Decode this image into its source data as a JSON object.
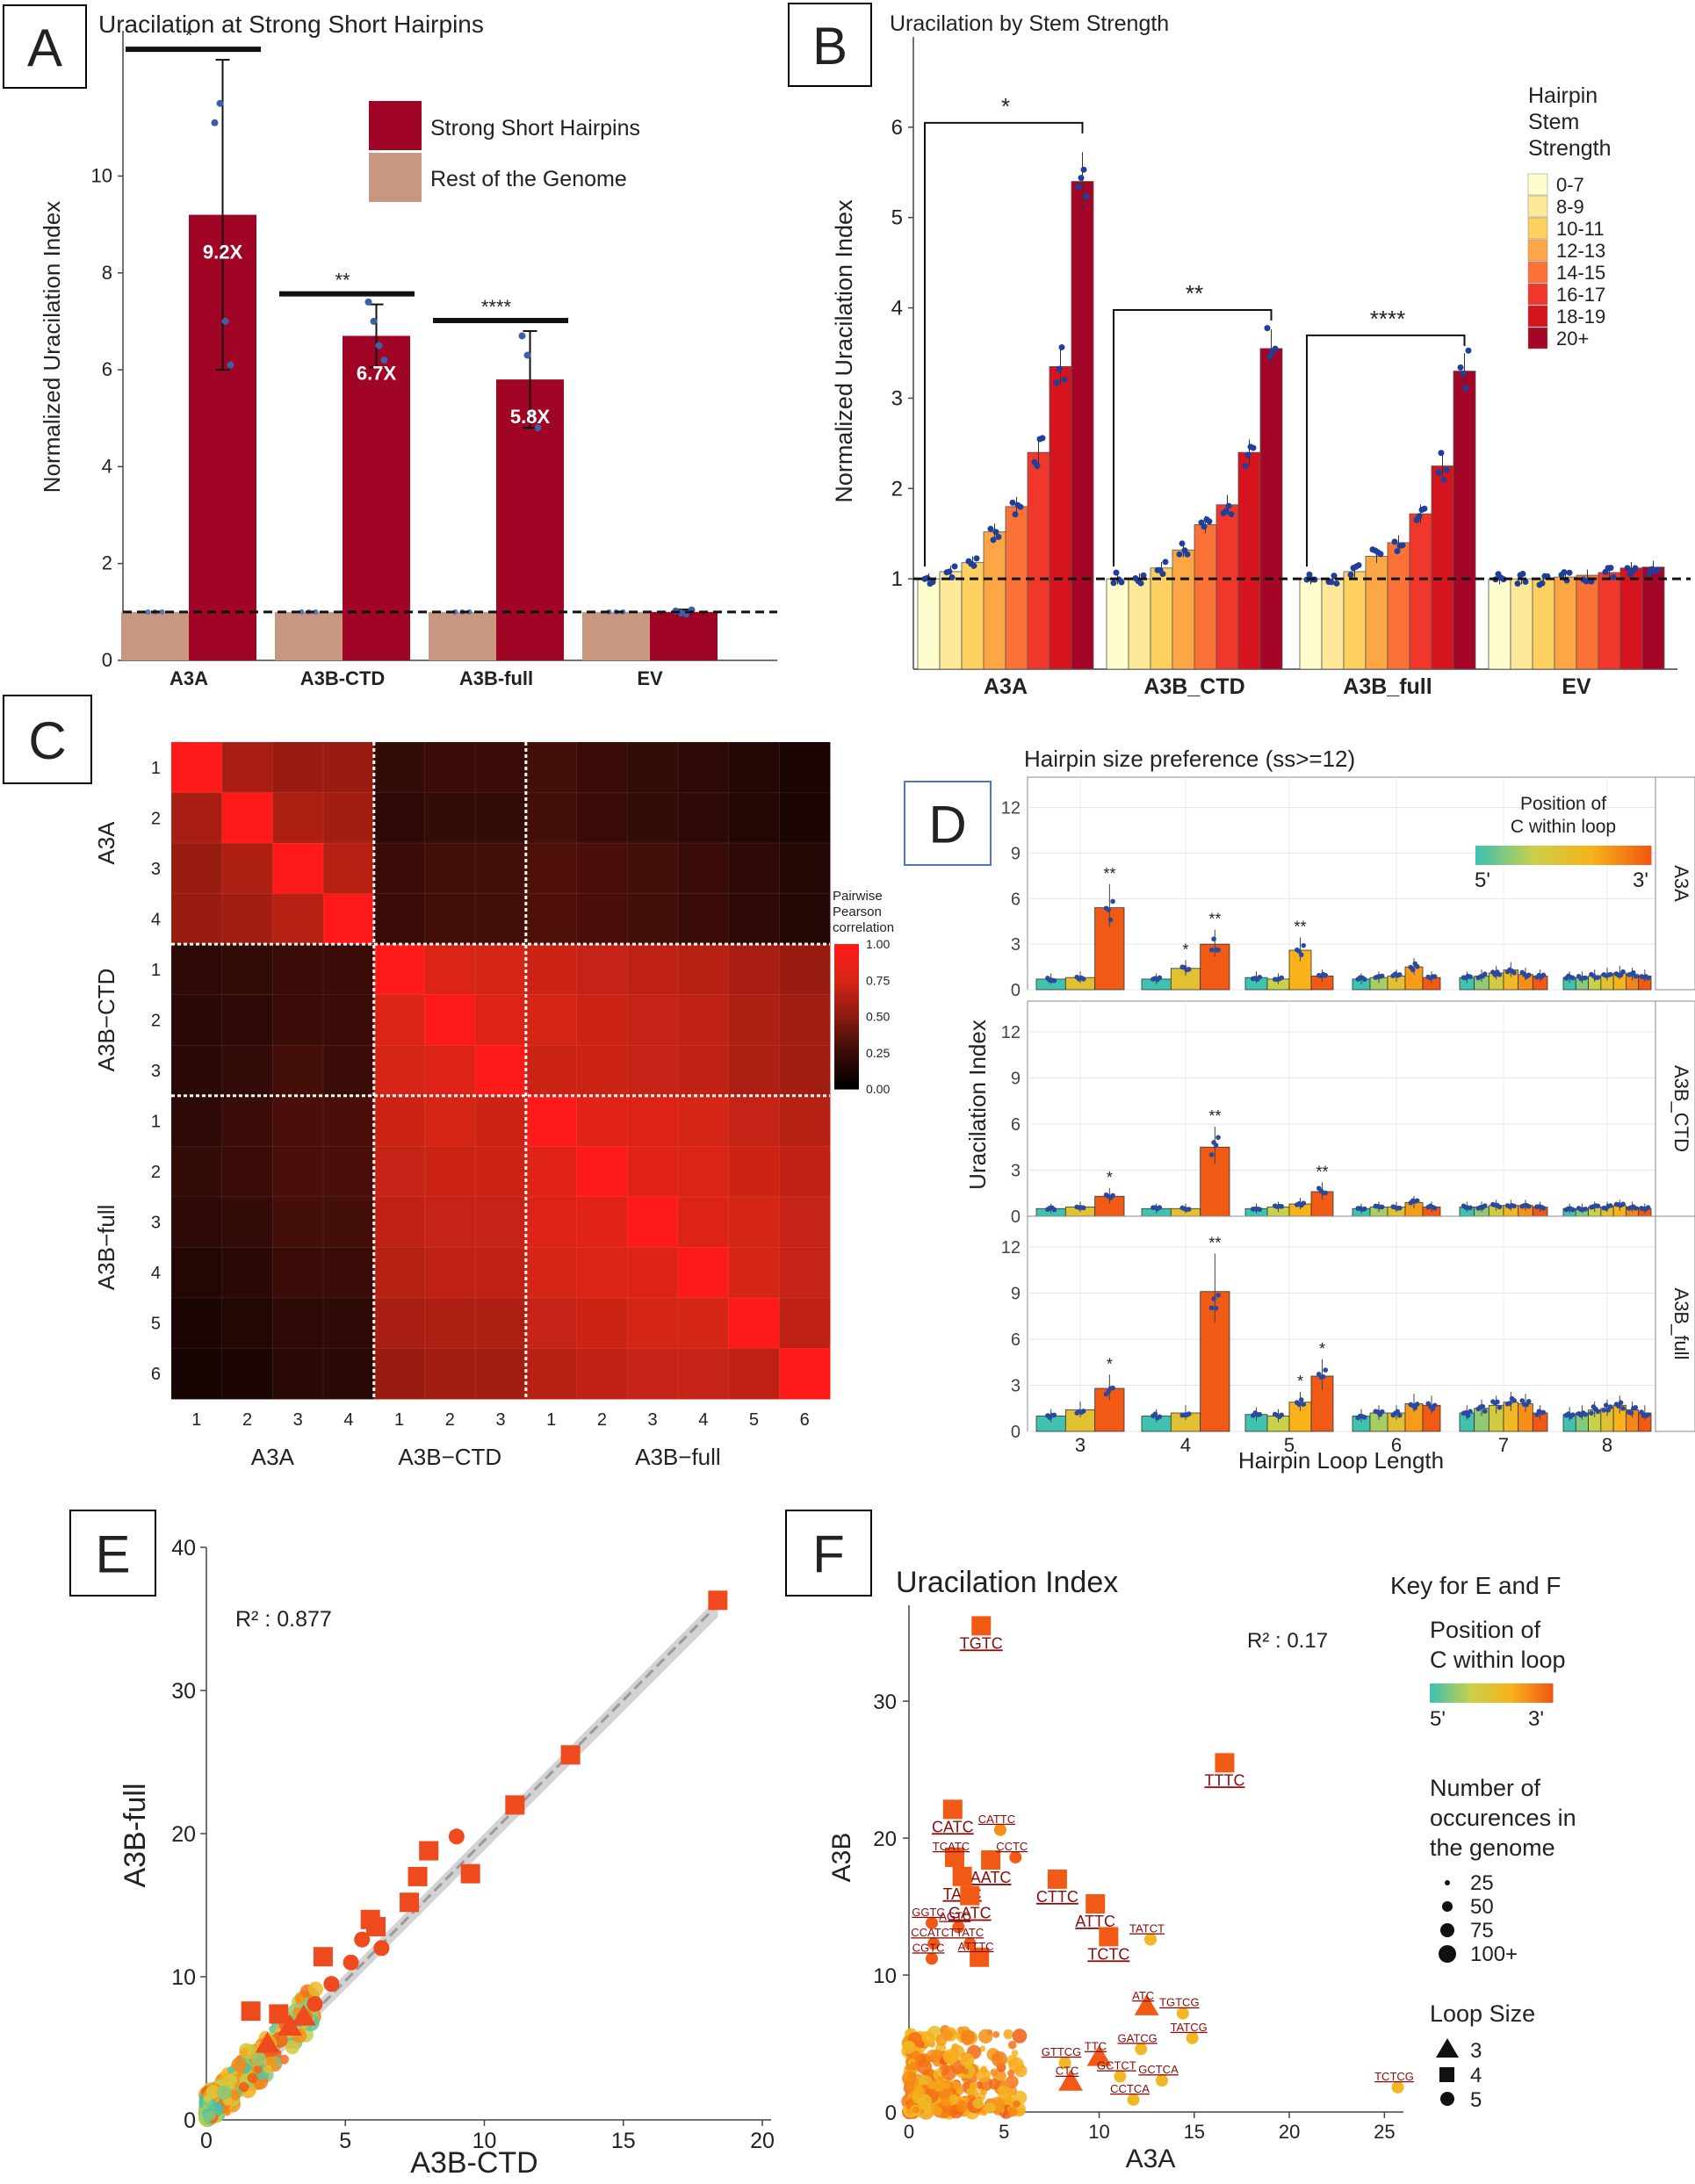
{
  "chart_data": [
    {
      "panel": "A",
      "type": "bar",
      "letter": "A",
      "title": "Uracilation at Strong Short Hairpins",
      "ylabel": "Normalized Uracilation Index",
      "ylim": [
        0,
        13
      ],
      "yticks": [
        "0",
        "2",
        "4",
        "6",
        "8",
        "10"
      ],
      "categories": [
        "A3A",
        "A3B-CTD",
        "A3B-full",
        "EV"
      ],
      "series": [
        {
          "name": "Rest of the Genome",
          "color": "#c8977f",
          "values": [
            1.0,
            1.0,
            1.0,
            1.0
          ],
          "err": [
            0.02,
            0.02,
            0.02,
            0.02
          ]
        },
        {
          "name": "Strong Short Hairpins",
          "color": "#a10525",
          "values": [
            9.2,
            6.7,
            5.8,
            1.0
          ],
          "err": [
            3.2,
            0.65,
            1.0,
            0.05
          ]
        }
      ],
      "points": [
        [
          11.1,
          11.5,
          7.0,
          6.1
        ],
        [
          7.4,
          7.0,
          6.5,
          6.2
        ],
        [
          6.7,
          6.3,
          5.1,
          4.8
        ],
        [
          1.02,
          0.98,
          0.96,
          1.04
        ]
      ],
      "fold_labels": [
        "9.2X",
        "6.7X",
        "5.8X",
        ""
      ],
      "significance": [
        "*",
        "**",
        "****",
        ""
      ],
      "legend": [
        "Strong Short Hairpins",
        "Rest of the Genome"
      ]
    },
    {
      "panel": "B",
      "type": "bar",
      "letter": "B",
      "title": "Uracilation by Stem Strength",
      "ylabel": "Normalized Uracilation Index",
      "ylim": [
        0,
        7.0
      ],
      "yticks": [
        "1",
        "2",
        "3",
        "4",
        "5",
        "6"
      ],
      "categories": [
        "A3A",
        "A3B_CTD",
        "A3B_full",
        "EV"
      ],
      "legend_title": [
        "Hairpin",
        "Stem",
        "Strength"
      ],
      "legend": [
        "0-7",
        "8-9",
        "10-11",
        "12-13",
        "14-15",
        "16-17",
        "18-19",
        "20+"
      ],
      "colors": [
        "#fffccd",
        "#fee99a",
        "#fed05f",
        "#fda646",
        "#fb7236",
        "#f0372b",
        "#d5141e",
        "#a50526"
      ],
      "groups": [
        {
          "values": [
            1.0,
            1.08,
            1.18,
            1.52,
            1.8,
            2.4,
            3.35,
            5.4
          ]
        },
        {
          "values": [
            1.0,
            1.0,
            1.12,
            1.32,
            1.6,
            1.82,
            2.4,
            3.55
          ]
        },
        {
          "values": [
            1.0,
            1.0,
            1.08,
            1.25,
            1.4,
            1.72,
            2.25,
            3.3
          ]
        },
        {
          "values": [
            1.0,
            1.0,
            1.0,
            1.02,
            1.04,
            1.07,
            1.12,
            1.13
          ]
        }
      ],
      "significance": [
        "*",
        "**",
        "****",
        ""
      ]
    },
    {
      "panel": "C",
      "type": "heatmap",
      "letter": "C",
      "legend_title": [
        "Pairwise",
        "Pearson",
        "correlation"
      ],
      "legend_ticks": [
        "1.00",
        "0.75",
        "0.50",
        "0.25",
        "0.00"
      ],
      "groups": [
        "A3A",
        "A3B−CTD",
        "A3B−full"
      ],
      "row_labels": [
        "1",
        "2",
        "3",
        "4",
        "1",
        "2",
        "3",
        "1",
        "2",
        "3",
        "4",
        "5",
        "6"
      ],
      "col_labels": [
        "1",
        "2",
        "3",
        "4",
        "1",
        "2",
        "3",
        "1",
        "2",
        "3",
        "4",
        "5",
        "6"
      ],
      "matrix": [
        [
          1.0,
          0.6,
          0.55,
          0.55,
          0.22,
          0.25,
          0.25,
          0.28,
          0.25,
          0.22,
          0.2,
          0.15,
          0.12
        ],
        [
          0.6,
          1.0,
          0.62,
          0.58,
          0.2,
          0.22,
          0.22,
          0.28,
          0.25,
          0.22,
          0.2,
          0.15,
          0.12
        ],
        [
          0.55,
          0.62,
          1.0,
          0.65,
          0.25,
          0.28,
          0.28,
          0.32,
          0.3,
          0.28,
          0.25,
          0.2,
          0.16
        ],
        [
          0.55,
          0.58,
          0.65,
          1.0,
          0.25,
          0.28,
          0.28,
          0.32,
          0.3,
          0.28,
          0.25,
          0.2,
          0.16
        ],
        [
          0.2,
          0.22,
          0.25,
          0.25,
          1.0,
          0.78,
          0.75,
          0.72,
          0.7,
          0.68,
          0.65,
          0.6,
          0.55
        ],
        [
          0.18,
          0.2,
          0.25,
          0.25,
          0.78,
          1.0,
          0.8,
          0.75,
          0.72,
          0.7,
          0.68,
          0.62,
          0.58
        ],
        [
          0.18,
          0.22,
          0.28,
          0.25,
          0.75,
          0.8,
          1.0,
          0.72,
          0.72,
          0.7,
          0.68,
          0.62,
          0.58
        ],
        [
          0.2,
          0.25,
          0.3,
          0.3,
          0.72,
          0.75,
          0.72,
          1.0,
          0.82,
          0.8,
          0.75,
          0.7,
          0.65
        ],
        [
          0.22,
          0.25,
          0.3,
          0.3,
          0.7,
          0.72,
          0.72,
          0.82,
          1.0,
          0.82,
          0.78,
          0.72,
          0.68
        ],
        [
          0.2,
          0.22,
          0.28,
          0.28,
          0.68,
          0.7,
          0.7,
          0.8,
          0.82,
          1.0,
          0.8,
          0.75,
          0.7
        ],
        [
          0.15,
          0.18,
          0.25,
          0.25,
          0.65,
          0.68,
          0.68,
          0.75,
          0.78,
          0.8,
          1.0,
          0.75,
          0.7
        ],
        [
          0.12,
          0.15,
          0.2,
          0.2,
          0.6,
          0.62,
          0.62,
          0.7,
          0.72,
          0.75,
          0.75,
          1.0,
          0.68
        ],
        [
          0.1,
          0.12,
          0.18,
          0.18,
          0.55,
          0.58,
          0.58,
          0.65,
          0.68,
          0.7,
          0.7,
          0.68,
          1.0
        ]
      ]
    },
    {
      "panel": "D",
      "type": "bar",
      "letter": "D",
      "title": "Hairpin size preference (ss>=12)",
      "xlabel": "Hairpin Loop Length",
      "ylabel": "Uracilation Index",
      "ylim": [
        0,
        14
      ],
      "yticks": [
        "0",
        "3",
        "6",
        "9",
        "12"
      ],
      "categories": [
        "3",
        "4",
        "5",
        "6",
        "7",
        "8"
      ],
      "legend_title": [
        "Position of",
        "C within loop"
      ],
      "legend_ends": [
        "5'",
        "3'"
      ],
      "facets": [
        {
          "name": "A3A",
          "values": [
            [
              0.7,
              0.8,
              5.4
            ],
            [
              0.7,
              1.4,
              3.0
            ],
            [
              0.8,
              0.7,
              2.6,
              0.9
            ],
            [
              0.7,
              0.8,
              0.9,
              1.5,
              0.8
            ],
            [
              0.8,
              0.9,
              1.1,
              1.3,
              1.0,
              0.9
            ],
            [
              0.8,
              0.8,
              0.9,
              1.0,
              1.1,
              1.0,
              0.9
            ]
          ],
          "stars": [
            [
              2,
              "**"
            ],
            [
              4,
              "*"
            ],
            [
              5,
              "**"
            ],
            [
              8,
              "**"
            ]
          ]
        },
        {
          "name": "A3B_CTD",
          "values": [
            [
              0.5,
              0.6,
              1.3
            ],
            [
              0.5,
              0.5,
              4.5
            ],
            [
              0.5,
              0.6,
              0.8,
              1.6
            ],
            [
              0.5,
              0.6,
              0.6,
              0.9,
              0.6
            ],
            [
              0.6,
              0.6,
              0.7,
              0.7,
              0.7,
              0.6
            ],
            [
              0.5,
              0.5,
              0.6,
              0.6,
              0.7,
              0.6,
              0.5
            ]
          ],
          "stars": [
            [
              2,
              "*"
            ],
            [
              5,
              "**"
            ],
            [
              9,
              "**"
            ]
          ]
        },
        {
          "name": "A3B_full",
          "values": [
            [
              1.0,
              1.4,
              2.8
            ],
            [
              1.0,
              1.2,
              9.1
            ],
            [
              1.1,
              1.0,
              1.9,
              3.6
            ],
            [
              1.0,
              1.2,
              1.2,
              1.8,
              1.7
            ],
            [
              1.2,
              1.5,
              1.7,
              1.9,
              1.8,
              1.2
            ],
            [
              1.1,
              1.2,
              1.4,
              1.5,
              1.7,
              1.4,
              1.2
            ]
          ],
          "stars": [
            [
              2,
              "*"
            ],
            [
              5,
              "**"
            ],
            [
              8,
              "*"
            ],
            [
              9,
              "*"
            ]
          ]
        }
      ]
    },
    {
      "panel": "E",
      "type": "scatter",
      "letter": "E",
      "xlabel": "A3B-CTD",
      "ylabel": "A3B-full",
      "xlim": [
        0,
        20
      ],
      "ylim": [
        0,
        40
      ],
      "xticks": [
        "0",
        "5",
        "10",
        "15",
        "20"
      ],
      "yticks": [
        "0",
        "10",
        "20",
        "30",
        "40"
      ],
      "r2_label": "R² : 0.877",
      "highlight": [
        {
          "x": 18.4,
          "y": 36.3,
          "s": "square"
        },
        {
          "x": 13.1,
          "y": 25.5,
          "s": "square"
        },
        {
          "x": 11.1,
          "y": 22.0,
          "s": "square"
        },
        {
          "x": 9.5,
          "y": 17.2,
          "s": "square"
        },
        {
          "x": 8.0,
          "y": 18.8,
          "s": "square"
        },
        {
          "x": 7.6,
          "y": 17.0,
          "s": "square"
        },
        {
          "x": 7.3,
          "y": 15.2,
          "s": "square"
        },
        {
          "x": 6.1,
          "y": 13.5,
          "s": "square"
        },
        {
          "x": 5.9,
          "y": 14.0,
          "s": "square"
        },
        {
          "x": 4.2,
          "y": 11.4,
          "s": "square"
        },
        {
          "x": 2.6,
          "y": 7.4,
          "s": "square"
        },
        {
          "x": 1.6,
          "y": 7.6,
          "s": "square"
        },
        {
          "x": 3.5,
          "y": 7.2,
          "s": "triangle"
        },
        {
          "x": 3.0,
          "y": 6.5,
          "s": "triangle"
        },
        {
          "x": 2.2,
          "y": 5.3,
          "s": "triangle"
        },
        {
          "x": 9.0,
          "y": 19.8,
          "s": "circle"
        },
        {
          "x": 6.3,
          "y": 12.0,
          "s": "circle"
        },
        {
          "x": 5.2,
          "y": 11.0,
          "s": "circle"
        },
        {
          "x": 4.5,
          "y": 9.5,
          "s": "circle"
        },
        {
          "x": 3.9,
          "y": 8.1,
          "s": "circle"
        },
        {
          "x": 5.6,
          "y": 12.6,
          "s": "circle"
        }
      ]
    },
    {
      "panel": "F",
      "type": "scatter",
      "letter": "F",
      "title": "Uracilation Index",
      "xlabel": "A3A",
      "ylabel": "A3B",
      "xlim": [
        0,
        26
      ],
      "ylim": [
        0,
        37
      ],
      "xticks": [
        "0",
        "5",
        "10",
        "15",
        "20",
        "25"
      ],
      "yticks": [
        "0",
        "10",
        "20",
        "30"
      ],
      "r2_label": "R² : 0.17",
      "key_title": "Key for E and F",
      "color_title": [
        "Position of",
        "C within loop"
      ],
      "color_ends": [
        "5'",
        "3'"
      ],
      "size_title": [
        "Number of",
        "occurences in",
        "the genome"
      ],
      "size_labels": [
        "25",
        "50",
        "75",
        "100+"
      ],
      "shape_title": "Loop Size",
      "shape_labels": [
        "3",
        "4",
        "5"
      ],
      "labeled": [
        {
          "x": 3.8,
          "y": 35.5,
          "label": "TGTC",
          "s": "square",
          "c": 1.0
        },
        {
          "x": 16.6,
          "y": 25.5,
          "label": "TTTC",
          "s": "square",
          "c": 1.0
        },
        {
          "x": 2.3,
          "y": 22.1,
          "label": "CATC",
          "s": "square",
          "c": 1.0
        },
        {
          "x": 4.8,
          "y": 20.6,
          "label": "CATTC",
          "s": "circle",
          "c": 0.8
        },
        {
          "x": 2.4,
          "y": 18.6,
          "label": "TCATC",
          "s": "square",
          "c": 1.0
        },
        {
          "x": 4.3,
          "y": 18.4,
          "label": "AATC",
          "s": "square",
          "c": 1.0
        },
        {
          "x": 5.6,
          "y": 18.6,
          "label": "CCTC",
          "s": "circle",
          "c": 1.0
        },
        {
          "x": 2.8,
          "y": 17.2,
          "label": "TATC",
          "s": "square",
          "c": 1.0
        },
        {
          "x": 7.8,
          "y": 17.0,
          "label": "CTTC",
          "s": "square",
          "c": 1.0
        },
        {
          "x": 3.2,
          "y": 15.8,
          "label": "GATC",
          "s": "square",
          "c": 1.0
        },
        {
          "x": 9.8,
          "y": 15.2,
          "label": "ATTC",
          "s": "square",
          "c": 1.0
        },
        {
          "x": 1.2,
          "y": 13.8,
          "label": "GGTC",
          "s": "circle",
          "c": 1.0
        },
        {
          "x": 2.6,
          "y": 13.5,
          "label": "AGTC",
          "s": "circle",
          "c": 1.0
        },
        {
          "x": 10.5,
          "y": 12.8,
          "label": "TCTC",
          "s": "square",
          "c": 1.0
        },
        {
          "x": 12.7,
          "y": 12.6,
          "label": "TATCT",
          "s": "circle",
          "c": 0.6
        },
        {
          "x": 1.3,
          "y": 12.3,
          "label": "CCATC",
          "s": "circle",
          "c": 1.0
        },
        {
          "x": 3.2,
          "y": 12.3,
          "label": "TTATC",
          "s": "circle",
          "c": 1.0
        },
        {
          "x": 1.2,
          "y": 11.2,
          "label": "CGTC",
          "s": "circle",
          "c": 1.0
        },
        {
          "x": 3.7,
          "y": 11.3,
          "label": "ATTTC",
          "s": "square",
          "c": 1.0
        },
        {
          "x": 12.5,
          "y": 7.7,
          "label": "ATC",
          "s": "triangle",
          "c": 1.0
        },
        {
          "x": 14.4,
          "y": 7.2,
          "label": "TGTCG",
          "s": "circle",
          "c": 0.6
        },
        {
          "x": 14.9,
          "y": 5.4,
          "label": "TATCG",
          "s": "circle",
          "c": 0.6
        },
        {
          "x": 10.0,
          "y": 4.0,
          "label": "TTC",
          "s": "triangle",
          "c": 1.0
        },
        {
          "x": 8.2,
          "y": 3.6,
          "label": "GTTCG",
          "s": "circle",
          "c": 0.6
        },
        {
          "x": 12.2,
          "y": 4.6,
          "label": "GATCG",
          "s": "circle",
          "c": 0.6
        },
        {
          "x": 11.1,
          "y": 2.6,
          "label": "GCTCT",
          "s": "circle",
          "c": 0.6
        },
        {
          "x": 13.3,
          "y": 2.3,
          "label": "GCTCA",
          "s": "circle",
          "c": 0.6
        },
        {
          "x": 8.5,
          "y": 2.2,
          "label": "CTC",
          "s": "triangle",
          "c": 1.0
        },
        {
          "x": 11.8,
          "y": 0.9,
          "label": "CCTCA",
          "s": "circle",
          "c": 0.6
        },
        {
          "x": 25.7,
          "y": 1.8,
          "label": "TCTCG",
          "s": "circle",
          "c": 0.6
        }
      ]
    }
  ]
}
